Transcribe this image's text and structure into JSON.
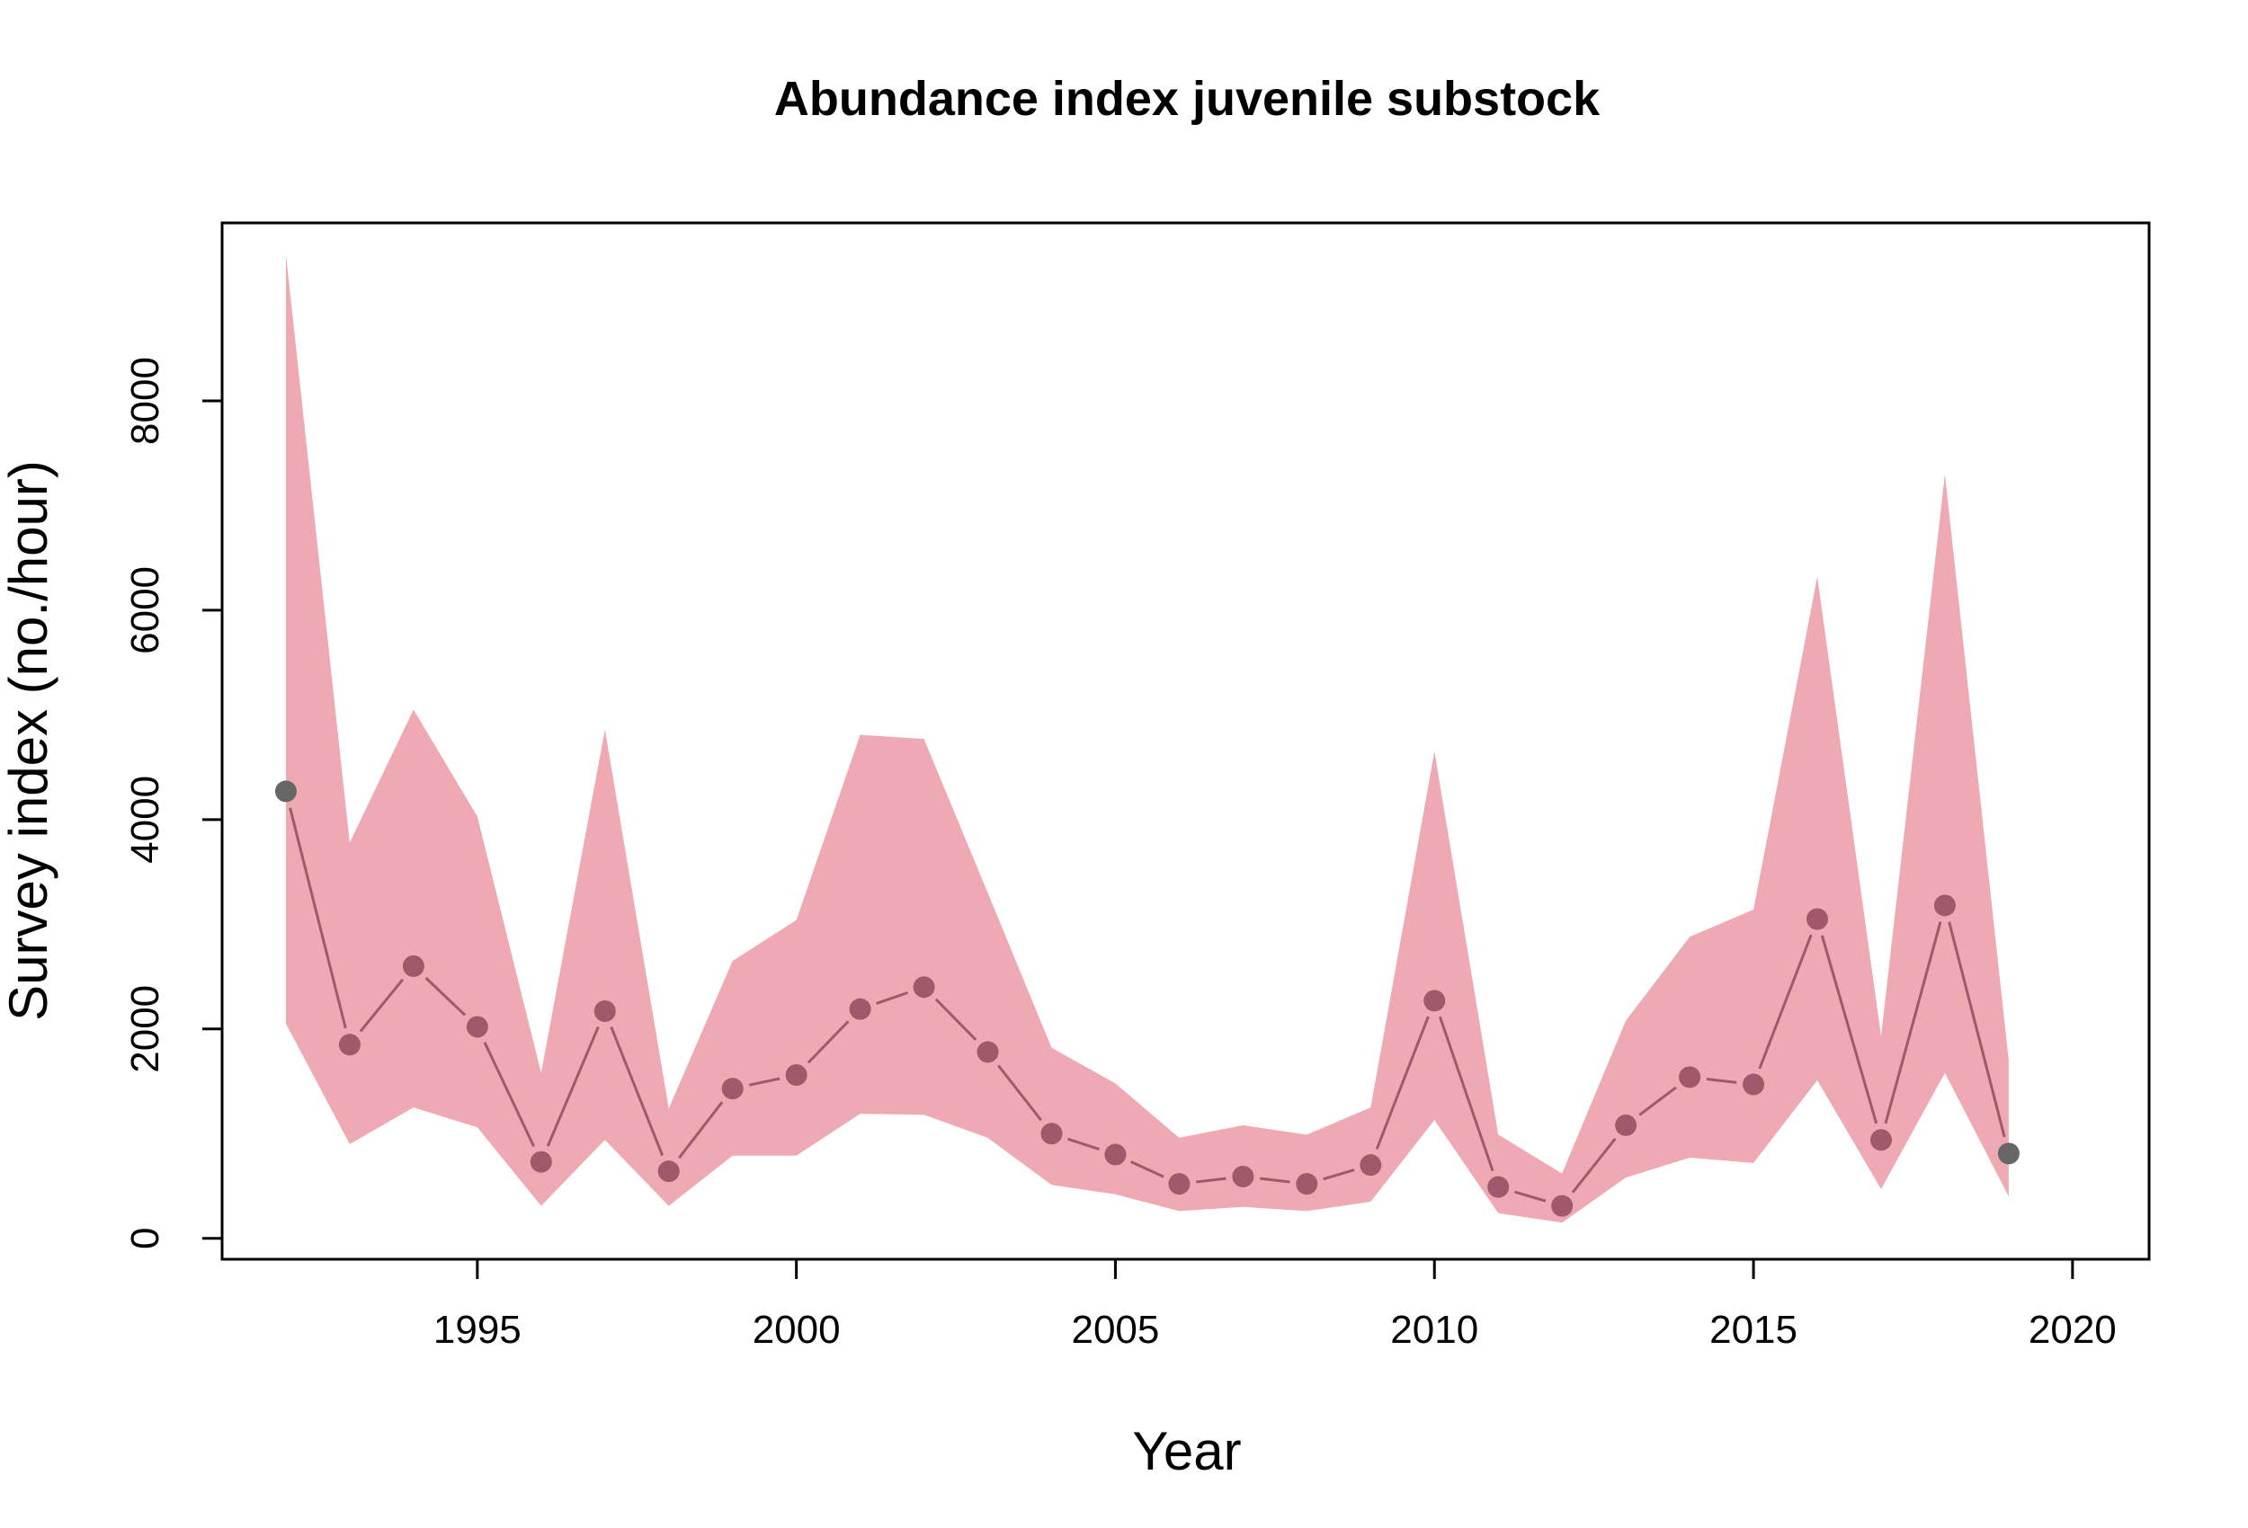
{
  "chart_data": {
    "type": "line",
    "title": "Abundance index juvenile substock",
    "xlabel": "Year",
    "ylabel": "Survey index (no./hour)",
    "xlim": [
      1991,
      2021.2
    ],
    "ylim": [
      -200,
      9700
    ],
    "xticks": [
      1995,
      2000,
      2005,
      2010,
      2015,
      2020
    ],
    "xtick_labels": [
      "1995",
      "2000",
      "2005",
      "2010",
      "2015",
      "2020"
    ],
    "yticks": [
      0,
      2000,
      4000,
      6000,
      8000
    ],
    "ytick_labels": [
      "0",
      "2000",
      "4000",
      "6000",
      "8000"
    ],
    "grid": false,
    "legend": "none",
    "colors": {
      "band": "#eea9b3",
      "line": "#a0586a",
      "points": "#a0586a",
      "end_points": "#666666",
      "axes": "#000000"
    },
    "series": [
      {
        "x": [
          1992,
          1993,
          1994,
          1995,
          1996,
          1997,
          1998,
          1999,
          2000,
          2001,
          2002,
          2003,
          2004,
          2005,
          2006,
          2007,
          2008,
          2009,
          2010,
          2011,
          2012,
          2013,
          2014,
          2015,
          2016,
          2017,
          2018,
          2019
        ],
        "y": [
          4270,
          1850,
          2600,
          2020,
          730,
          2170,
          640,
          1430,
          1560,
          2190,
          2400,
          1780,
          1000,
          800,
          520,
          590,
          520,
          700,
          2270,
          490,
          310,
          1080,
          1540,
          1470,
          3050,
          940,
          3180,
          810
        ],
        "lower": [
          2050,
          900,
          1250,
          1060,
          310,
          940,
          310,
          790,
          790,
          1190,
          1180,
          960,
          510,
          420,
          260,
          300,
          260,
          350,
          1130,
          240,
          150,
          580,
          770,
          720,
          1510,
          470,
          1580,
          400
        ],
        "upper": [
          9400,
          3780,
          5050,
          4030,
          1580,
          4860,
          1240,
          2650,
          3040,
          4810,
          4770,
          3300,
          1820,
          1480,
          960,
          1080,
          990,
          1250,
          4650,
          990,
          620,
          2080,
          2880,
          3140,
          6320,
          1930,
          7300,
          1700
        ]
      }
    ]
  }
}
